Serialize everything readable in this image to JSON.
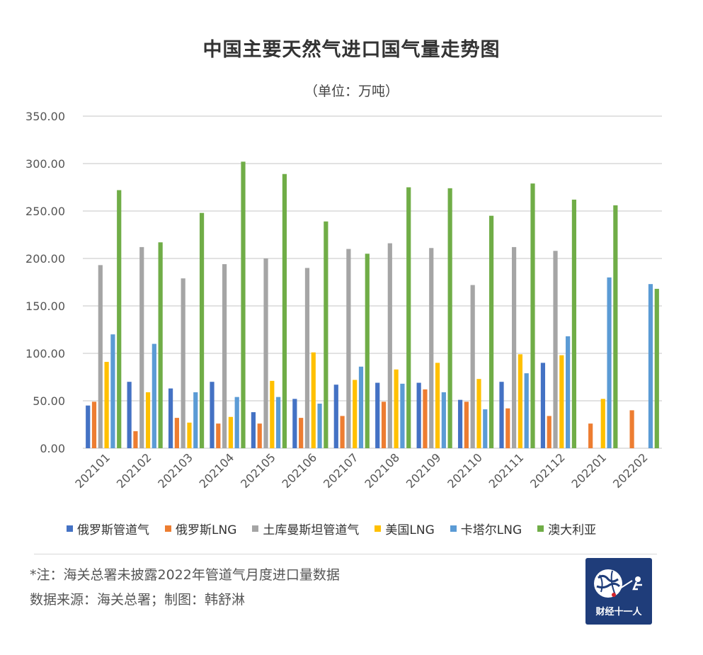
{
  "chart_data": {
    "type": "bar",
    "title": "中国主要天然气进口国气量走势图",
    "subtitle": "（单位：万吨）",
    "categories": [
      "202101",
      "202102",
      "202103",
      "202104",
      "202105",
      "202106",
      "202107",
      "202108",
      "202109",
      "202110",
      "202111",
      "202112",
      "202201",
      "202202"
    ],
    "series": [
      {
        "name": "俄罗斯管道气",
        "color": "#4472c4",
        "values": [
          45,
          70,
          63,
          70,
          38,
          52,
          67,
          69,
          69,
          51,
          70,
          90,
          null,
          null
        ]
      },
      {
        "name": "俄罗斯LNG",
        "color": "#ed7d31",
        "values": [
          49,
          18,
          32,
          26,
          26,
          32,
          34,
          49,
          62,
          49,
          42,
          34,
          26,
          40
        ]
      },
      {
        "name": "土库曼斯坦管道气",
        "color": "#a5a5a5",
        "values": [
          193,
          212,
          179,
          194,
          200,
          190,
          210,
          216,
          211,
          172,
          212,
          208,
          null,
          null
        ]
      },
      {
        "name": "美国LNG",
        "color": "#ffc000",
        "values": [
          91,
          59,
          27,
          33,
          71,
          101,
          72,
          83,
          90,
          73,
          99,
          98,
          52,
          null
        ]
      },
      {
        "name": "卡塔尔LNG",
        "color": "#5b9bd5",
        "values": [
          120,
          110,
          59,
          54,
          54,
          47,
          86,
          68,
          59,
          41,
          79,
          118,
          180,
          173
        ]
      },
      {
        "name": "澳大利亚",
        "color": "#70ad47",
        "values": [
          272,
          217,
          248,
          302,
          289,
          239,
          205,
          275,
          274,
          245,
          279,
          262,
          256,
          168
        ]
      }
    ],
    "yticks": [
      "0.00",
      "50.00",
      "100.00",
      "150.00",
      "200.00",
      "250.00",
      "300.00",
      "350.00"
    ],
    "ylim": [
      0,
      350
    ],
    "grid": true,
    "legend_position": "bottom"
  },
  "notes": {
    "line1": "*注：海关总署未披露2022年管道气月度进口量数据",
    "line2": "数据来源：海关总署；制图：韩舒淋"
  },
  "logo": {
    "text": "财经十一人",
    "icon": "globe-icon"
  }
}
